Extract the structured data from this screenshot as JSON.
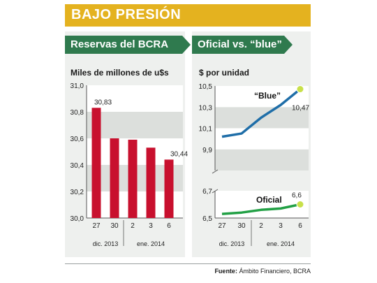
{
  "title": "BAJO PRESIÓN",
  "source": {
    "label": "Fuente:",
    "text": "Ámbito Financiero, BCRA"
  },
  "colors": {
    "banner": "#e4b21f",
    "panel_head": "#2f7a4e",
    "bar": "#c8102e",
    "blue_line": "#1f6ea8",
    "oficial_line": "#22a045",
    "marker": "#c8e04a"
  },
  "chart_data": [
    {
      "type": "bar",
      "title": "Reservas del BCRA",
      "ylabel": "Miles de millones de u$s",
      "categories": [
        "27",
        "30",
        "2",
        "3",
        "6"
      ],
      "values": [
        30.83,
        30.6,
        30.59,
        30.53,
        30.44
      ],
      "data_labels": [
        "30,83",
        "",
        "",
        "",
        "30,44"
      ],
      "ylim": [
        30.0,
        31.0
      ],
      "yticks": [
        "30,0",
        "30,2",
        "30,4",
        "30,6",
        "30,8",
        "31,0"
      ],
      "groups": [
        {
          "label": "dic. 2013"
        },
        {
          "label": "ene. 2014"
        }
      ],
      "grid": "bands"
    },
    {
      "type": "line",
      "title": "Oficial vs. “blue”",
      "ylabel": "$ por unidad",
      "categories": [
        "27",
        "30",
        "2",
        "3",
        "6"
      ],
      "series": [
        {
          "name": "“Blue”",
          "values": [
            10.02,
            10.05,
            10.2,
            10.32,
            10.47
          ],
          "end_label": "10,47"
        },
        {
          "name": "Oficial",
          "values": [
            6.53,
            6.54,
            6.56,
            6.57,
            6.6
          ],
          "end_label": "6,6"
        }
      ],
      "upper_axis": {
        "ylim": [
          9.7,
          10.5
        ],
        "ticks": [
          "9,9",
          "10,1",
          "10,3",
          "10,5"
        ]
      },
      "lower_axis": {
        "ylim": [
          6.5,
          6.7
        ],
        "ticks": [
          "6,5",
          "6,7"
        ]
      },
      "groups": [
        {
          "label": "dic. 2013"
        },
        {
          "label": "ene. 2014"
        }
      ]
    }
  ]
}
